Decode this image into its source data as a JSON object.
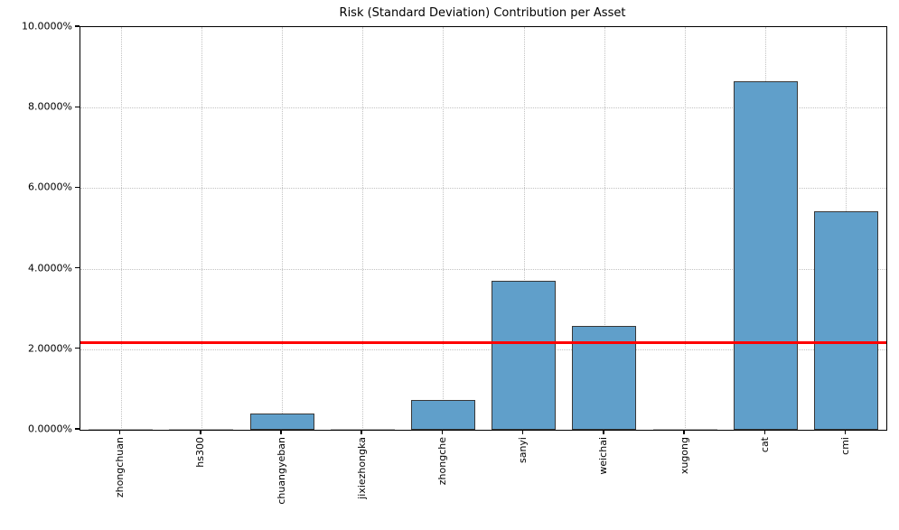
{
  "chart_data": {
    "type": "bar",
    "title": "Risk (Standard Deviation) Contribution per Asset",
    "xlabel": "",
    "ylabel": "",
    "categories": [
      "zhongchuan",
      "hs300",
      "chuangyeban",
      "jixiezhongka",
      "zhongche",
      "sanyi",
      "weichai",
      "xugong",
      "cat",
      "cmi"
    ],
    "values": [
      0.003,
      0.003,
      0.41,
      0.004,
      0.75,
      3.69,
      2.57,
      0.004,
      8.66,
      5.43
    ],
    "unit": "percent",
    "ylim": [
      0,
      10
    ],
    "y_ticks": [
      0,
      2,
      4,
      6,
      8,
      10
    ],
    "y_tick_labels": [
      "0.0000%",
      "2.0000%",
      "4.0000%",
      "6.0000%",
      "8.0000%",
      "10.0000%"
    ],
    "reference_line": {
      "value": 2.17,
      "color": "#ff0000"
    },
    "grid": "dotted",
    "legend": "none",
    "bar_color": "#609fca",
    "bar_edge_color": "#383838",
    "zero_bar_line_color": "#b4b4b4"
  }
}
